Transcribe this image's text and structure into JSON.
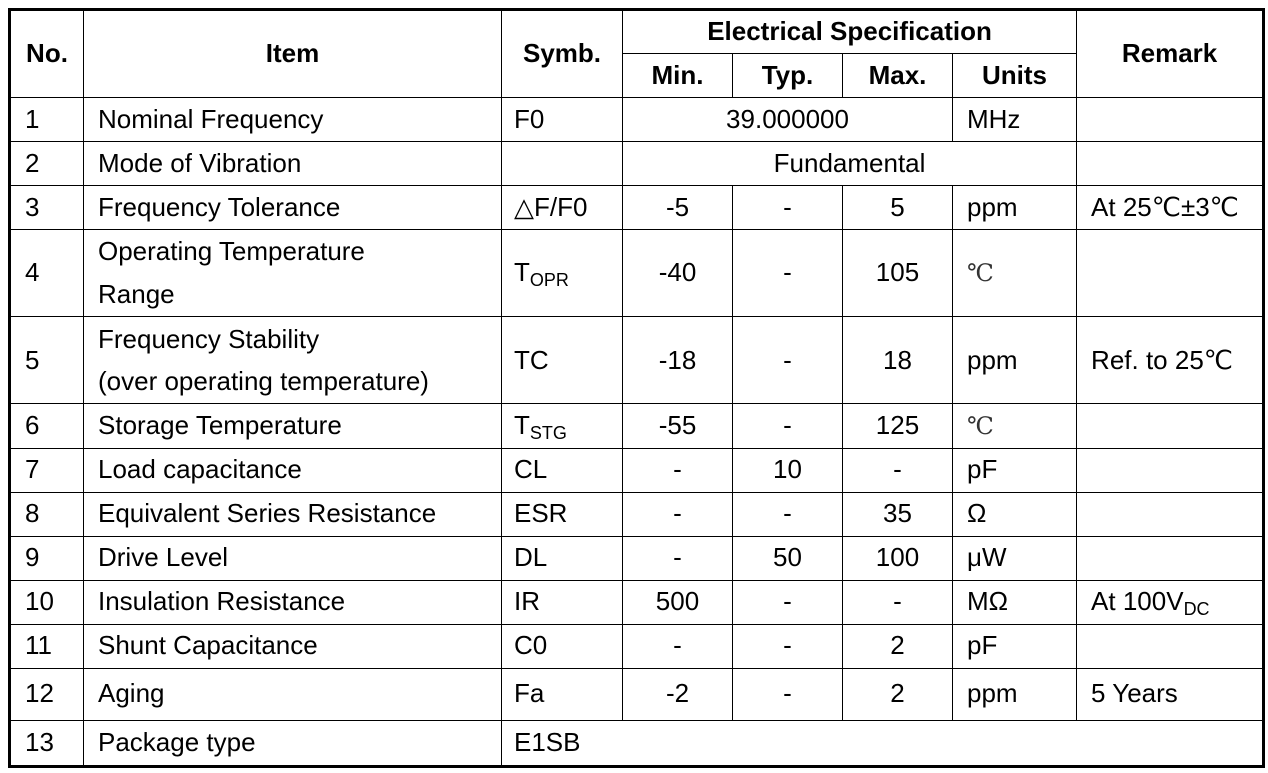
{
  "headers": {
    "no": "No.",
    "item": "Item",
    "symb": "Symb.",
    "electrical_specification": "Electrical Specification",
    "min": "Min.",
    "typ": "Typ.",
    "max": "Max.",
    "units": "Units",
    "remark": "Remark"
  },
  "rows": [
    {
      "no": "1",
      "item": "Nominal Frequency",
      "symbol": "F0",
      "value": "39.000000",
      "units": "MHz",
      "remark": ""
    },
    {
      "no": "2",
      "item": "Mode of Vibration",
      "symbol": "",
      "value": "Fundamental",
      "remark": ""
    },
    {
      "no": "3",
      "item": "Frequency Tolerance",
      "symbol": "△F/F0",
      "min": "-5",
      "typ": "-",
      "max": "5",
      "units": "ppm",
      "remark": "At 25℃±3℃"
    },
    {
      "no": "4",
      "item_line1": "Operating Temperature",
      "item_line2": "Range",
      "symbol_base": "T",
      "symbol_sub": "OPR",
      "min": "-40",
      "typ": "-",
      "max": "105",
      "units": "℃",
      "remark": ""
    },
    {
      "no": "5",
      "item_line1": "Frequency Stability",
      "item_line2": "(over operating temperature)",
      "symbol": "TC",
      "min": "-18",
      "typ": "-",
      "max": "18",
      "units": "ppm",
      "remark": "Ref. to 25℃"
    },
    {
      "no": "6",
      "item": "Storage Temperature",
      "symbol_base": "T",
      "symbol_sub": "STG",
      "min": "-55",
      "typ": "-",
      "max": "125",
      "units": "℃",
      "remark": ""
    },
    {
      "no": "7",
      "item": "Load capacitance",
      "symbol": "CL",
      "min": "-",
      "typ": "10",
      "max": "-",
      "units": "pF",
      "remark": ""
    },
    {
      "no": "8",
      "item": "Equivalent Series Resistance",
      "symbol": "ESR",
      "min": "-",
      "typ": "-",
      "max": "35",
      "units": "Ω",
      "remark": ""
    },
    {
      "no": "9",
      "item": "Drive Level",
      "symbol": "DL",
      "min": "-",
      "typ": "50",
      "max": "100",
      "units": "μW",
      "remark": ""
    },
    {
      "no": "10",
      "item": "Insulation Resistance",
      "symbol": "IR",
      "min": "500",
      "typ": "-",
      "max": "-",
      "units": "MΩ",
      "remark_base": "At 100V",
      "remark_sub": "DC"
    },
    {
      "no": "11",
      "item": "Shunt Capacitance",
      "symbol": "C0",
      "min": "-",
      "typ": "-",
      "max": "2",
      "units": "pF",
      "remark": ""
    },
    {
      "no": "12",
      "item": "Aging",
      "symbol": "Fa",
      "min": "-2",
      "typ": "-",
      "max": "2",
      "units": "ppm",
      "remark": "5 Years"
    },
    {
      "no": "13",
      "item": "Package type",
      "value": "E1SB"
    }
  ]
}
